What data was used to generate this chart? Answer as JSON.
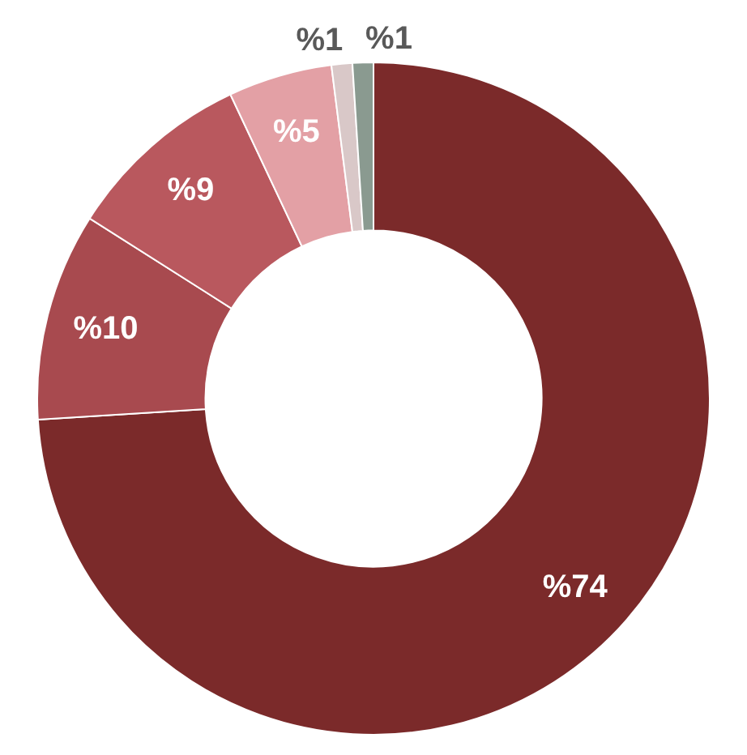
{
  "chart_data": {
    "type": "donut",
    "categories": [
      null,
      null,
      null,
      null,
      null,
      null
    ],
    "values": [
      74,
      10,
      9,
      5,
      1,
      1
    ],
    "colors": [
      "#7b2a2a",
      "#a84a4f",
      "#b9585e",
      "#e3a0a5",
      "#d9c8c8",
      "#8a9a90"
    ],
    "value_labels": [
      "%74",
      "%10",
      "%9",
      "%5",
      "%1",
      "%1"
    ],
    "legend": false
  }
}
